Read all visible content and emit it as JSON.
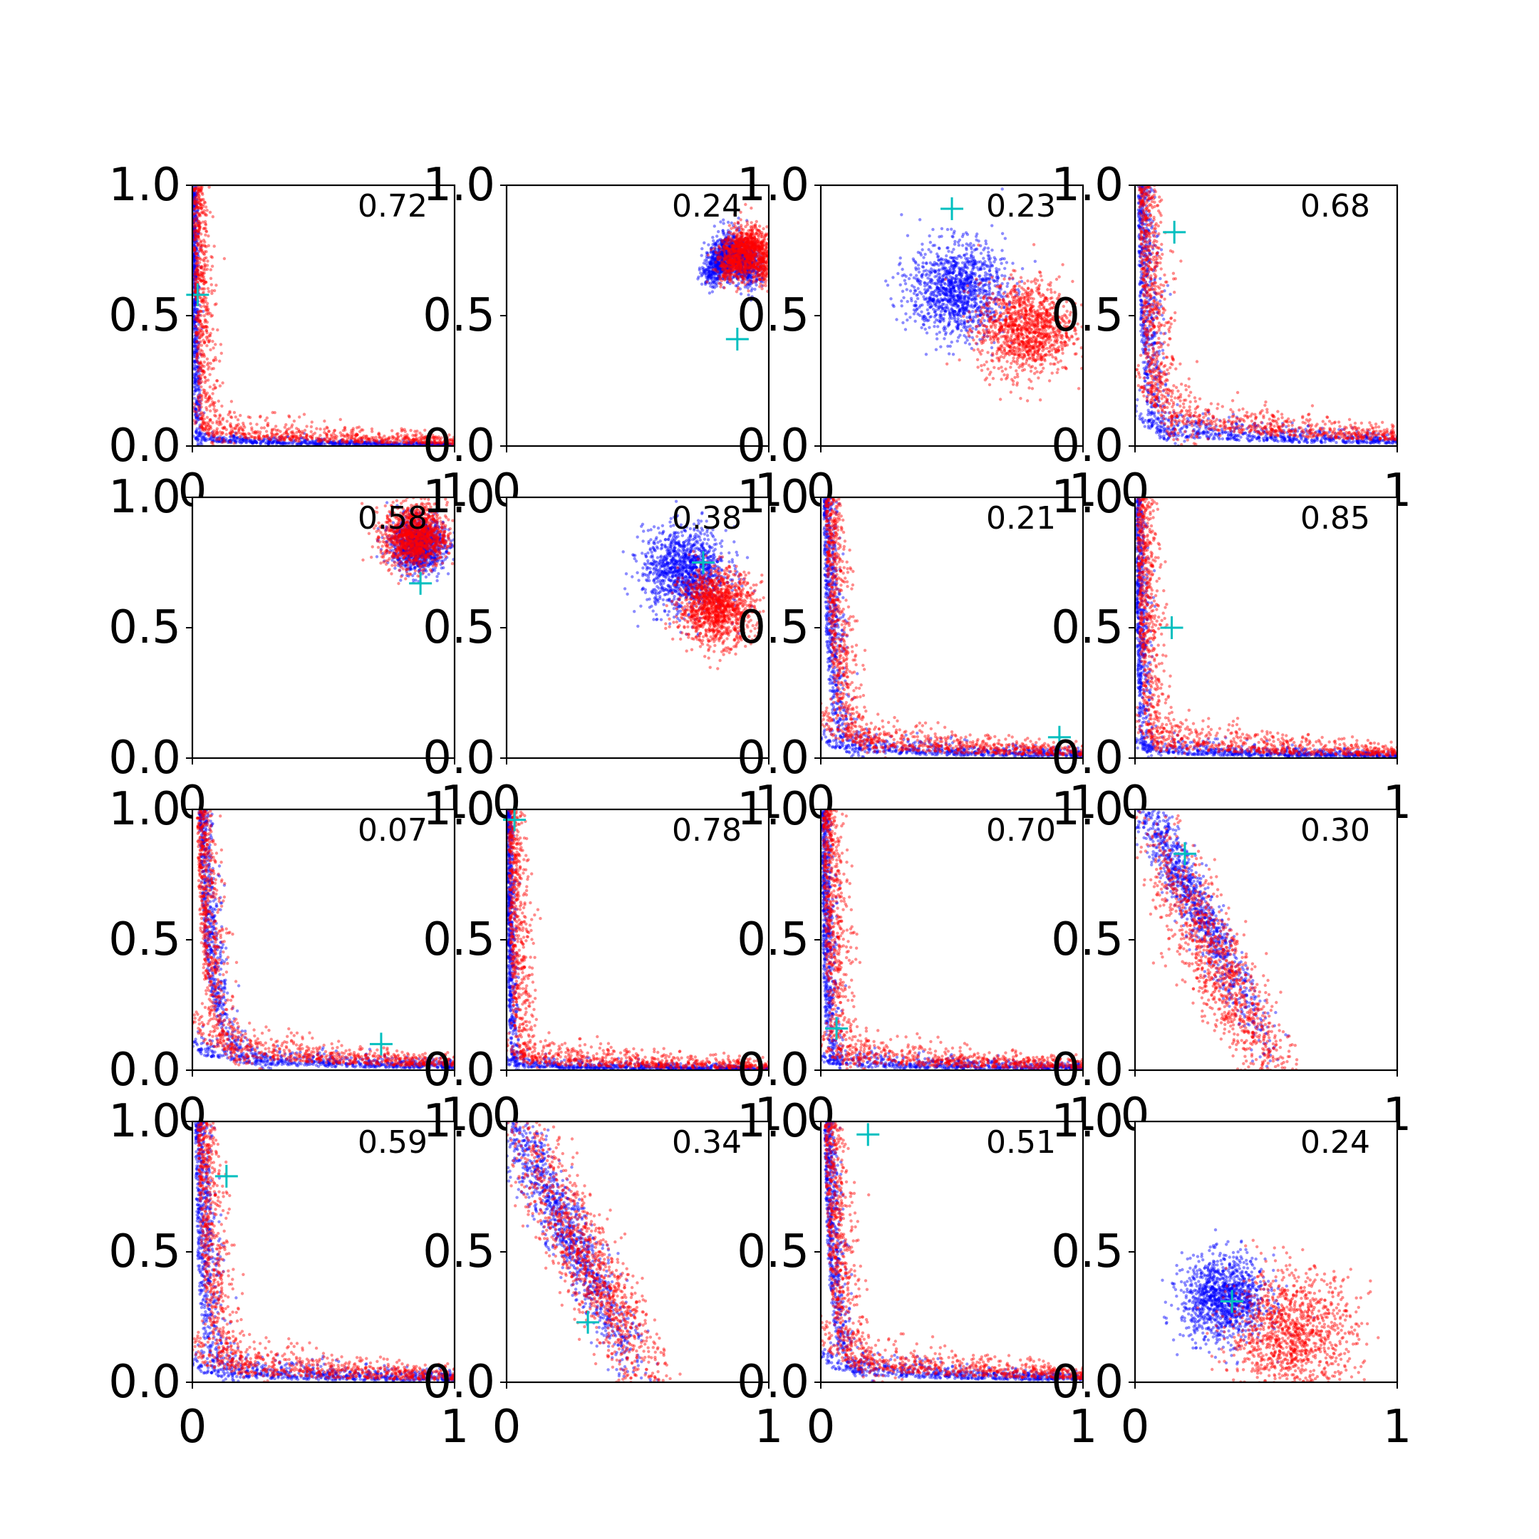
{
  "chart_data": {
    "type": "scatter",
    "layout": {
      "rows": 4,
      "cols": 4
    },
    "colors": {
      "series_a": "#0000ff",
      "series_b": "#ff0000",
      "marker": "#00bfbf",
      "axes": "#000000"
    },
    "xlim": [
      0,
      1
    ],
    "ylim": [
      0,
      1
    ],
    "xtick_labels": [
      "0",
      "1"
    ],
    "ytick_labels": [
      "0.0",
      "0.5",
      "1.0"
    ],
    "series": [
      {
        "color": "blue",
        "points_per_panel": 1200
      },
      {
        "color": "red",
        "points_per_panel": 1200
      }
    ],
    "panels": [
      {
        "label": "0.72",
        "marker": [
          0.02,
          0.58
        ],
        "shape": "L",
        "blue_arm_x": 0.02,
        "blue_arm_y": 0.03,
        "red_arm_x": 0.06,
        "red_arm_y": 0.09,
        "blue_spread": 0.015,
        "red_spread": 0.05
      },
      {
        "label": "0.24",
        "marker": [
          0.88,
          0.41
        ],
        "shape": "arc",
        "blue_center": [
          0.76,
          0.7
        ],
        "red_center": [
          0.82,
          0.72
        ],
        "blue_spread": 0.07,
        "red_spread": 0.08
      },
      {
        "label": "0.23",
        "marker": [
          0.5,
          0.91
        ],
        "shape": "two-blobs",
        "blue_center": [
          0.52,
          0.6
        ],
        "red_center": [
          0.78,
          0.45
        ],
        "blue_spread": 0.09,
        "red_spread": 0.09
      },
      {
        "label": "0.68",
        "marker": [
          0.15,
          0.82
        ],
        "shape": "L-tall",
        "blue_arm_x": 0.12,
        "blue_arm_y": 0.1,
        "red_arm_x": 0.18,
        "red_arm_y": 0.25,
        "blue_spread": 0.05,
        "red_spread": 0.07
      },
      {
        "label": "0.58",
        "marker": [
          0.87,
          0.67
        ],
        "shape": "corner-blob",
        "blue_center": [
          0.86,
          0.82
        ],
        "red_center": [
          0.85,
          0.85
        ],
        "blue_spread": 0.05,
        "red_spread": 0.06
      },
      {
        "label": "0.38",
        "marker": [
          0.75,
          0.75
        ],
        "shape": "two-blobs",
        "blue_center": [
          0.68,
          0.72
        ],
        "red_center": [
          0.8,
          0.58
        ],
        "blue_spread": 0.08,
        "red_spread": 0.07
      },
      {
        "label": "0.21",
        "marker": [
          0.91,
          0.08
        ],
        "shape": "curve",
        "blue_arm_x": 0.12,
        "blue_arm_y": 0.06,
        "red_arm_x": 0.2,
        "red_arm_y": 0.12,
        "blue_spread": 0.04,
        "red_spread": 0.06
      },
      {
        "label": "0.85",
        "marker": [
          0.14,
          0.5
        ],
        "shape": "L",
        "blue_arm_x": 0.04,
        "blue_arm_y": 0.04,
        "red_arm_x": 0.1,
        "red_arm_y": 0.1,
        "blue_spread": 0.03,
        "red_spread": 0.06
      },
      {
        "label": "0.07",
        "marker": [
          0.72,
          0.1
        ],
        "shape": "curve",
        "blue_arm_x": 0.28,
        "blue_arm_y": 0.08,
        "red_arm_x": 0.2,
        "red_arm_y": 0.16,
        "blue_spread": 0.04,
        "red_spread": 0.06
      },
      {
        "label": "0.78",
        "marker": [
          0.03,
          0.96
        ],
        "shape": "L",
        "blue_arm_x": 0.03,
        "blue_arm_y": 0.02,
        "red_arm_x": 0.08,
        "red_arm_y": 0.06,
        "blue_spread": 0.02,
        "red_spread": 0.05
      },
      {
        "label": "0.70",
        "marker": [
          0.06,
          0.16
        ],
        "shape": "L",
        "blue_arm_x": 0.05,
        "blue_arm_y": 0.03,
        "red_arm_x": 0.1,
        "red_arm_y": 0.07,
        "blue_spread": 0.03,
        "red_spread": 0.06
      },
      {
        "label": "0.30",
        "marker": [
          0.19,
          0.83
        ],
        "shape": "diagonal",
        "blue_center": [
          0.2,
          0.7
        ],
        "red_center": [
          0.32,
          0.4
        ],
        "blue_spread": 0.06,
        "red_spread": 0.1
      },
      {
        "label": "0.59",
        "marker": [
          0.13,
          0.79
        ],
        "shape": "curve",
        "blue_arm_x": 0.12,
        "blue_arm_y": 0.05,
        "red_arm_x": 0.22,
        "red_arm_y": 0.1,
        "blue_spread": 0.05,
        "red_spread": 0.07
      },
      {
        "label": "0.34",
        "marker": [
          0.31,
          0.23
        ],
        "shape": "vertical-band",
        "blue_center": [
          0.22,
          0.6
        ],
        "red_center": [
          0.32,
          0.45
        ],
        "blue_spread": 0.07,
        "red_spread": 0.1
      },
      {
        "label": "0.51",
        "marker": [
          0.18,
          0.95
        ],
        "shape": "curve",
        "blue_arm_x": 0.16,
        "blue_arm_y": 0.08,
        "red_arm_x": 0.18,
        "red_arm_y": 0.15,
        "blue_spread": 0.04,
        "red_spread": 0.07
      },
      {
        "label": "0.24",
        "marker": [
          0.37,
          0.31
        ],
        "shape": "two-blobs",
        "blue_center": [
          0.34,
          0.32
        ],
        "red_center": [
          0.6,
          0.18
        ],
        "blue_spread": 0.08,
        "red_spread": 0.12
      }
    ]
  }
}
